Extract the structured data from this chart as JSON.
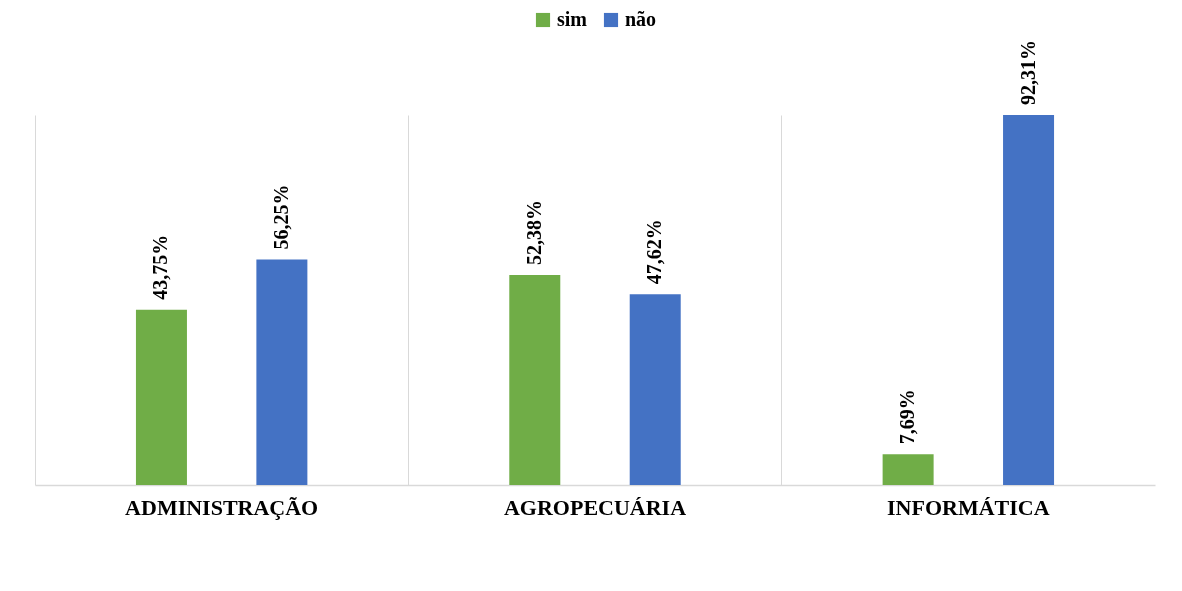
{
  "chart_data": {
    "type": "bar",
    "categories": [
      "ADMINISTRAÇÃO",
      "AGROPECUÁRIA",
      "INFORMÁTICA"
    ],
    "series": [
      {
        "name": "sim",
        "color": "#70ad47",
        "values": [
          43.75,
          52.38,
          7.69
        ],
        "value_labels": [
          "43,75%",
          "52,38%",
          "7,69%"
        ]
      },
      {
        "name": "não",
        "color": "#4472c4",
        "values": [
          56.25,
          47.62,
          92.31
        ],
        "value_labels": [
          "56,25%",
          "47,62%",
          "92,31%"
        ]
      }
    ],
    "grid": "x",
    "legend": "top"
  }
}
